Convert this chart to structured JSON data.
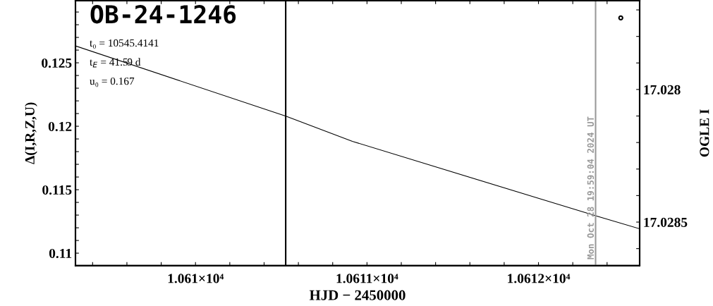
{
  "chart_data": {
    "type": "line",
    "title": "OB-24-1246",
    "xlabel": "HJD − 2450000",
    "ylabel": "Δ(I,R,Z,U)",
    "y2label": "OGLE I",
    "annotations": [
      "t₀ = 10545.4141",
      "t$_{E}$ = 41.59 d",
      "u₀ = 0.167",
      {
        "text": "Mon Oct 28 19:59:04 2024 UT",
        "x": 10612.333,
        "y": 0.1095
      }
    ],
    "series": [
      {
        "color": "#000000",
        "x": [
          10609.3,
          10610.527,
          10610.915,
          10612.0,
          10612.347,
          10612.59
        ],
        "values": [
          0.12633,
          0.12079,
          0.11881,
          0.11432,
          0.11289,
          0.11192
        ]
      },
      {
        "type": "scatter",
        "axis": "y2",
        "color": "#000000",
        "marker": "circle",
        "x": [
          10612.48
        ],
        "values": [
          17.02773
        ]
      }
    ],
    "xlim": [
      10609.3,
      10612.59
    ],
    "ylim": [
      0.10902,
      0.1299
    ],
    "y2lim": [
      17.028664,
      17.027665
    ],
    "xticks": [
      {
        "value": 10609.4,
        "label": null
      },
      {
        "value": 10609.6,
        "label": null
      },
      {
        "value": 10609.8,
        "label": null
      },
      {
        "value": 10610,
        "label": "1.061×10⁴"
      },
      {
        "value": 10610.2,
        "label": null
      },
      {
        "value": 10610.4,
        "label": null
      },
      {
        "value": 10610.6,
        "label": null
      },
      {
        "value": 10610.8,
        "label": null
      },
      {
        "value": 10611,
        "label": "1.0611×10⁴"
      },
      {
        "value": 10611.2,
        "label": null
      },
      {
        "value": 10611.4,
        "label": null
      },
      {
        "value": 10611.6,
        "label": null
      },
      {
        "value": 10611.8,
        "label": null
      },
      {
        "value": 10612,
        "label": "1.0612×10⁴"
      },
      {
        "value": 10612.2,
        "label": null
      },
      {
        "value": 10612.4,
        "label": null
      }
    ],
    "yticks": [
      0.11,
      {
        "value": 0.111,
        "label": null
      },
      {
        "value": 0.112,
        "label": null
      },
      {
        "value": 0.113,
        "label": null
      },
      {
        "value": 0.114,
        "label": null
      },
      0.115,
      {
        "value": 0.116,
        "label": null
      },
      {
        "value": 0.117,
        "label": null
      },
      {
        "value": 0.118,
        "label": null
      },
      {
        "value": 0.119,
        "label": null
      },
      0.12,
      {
        "value": 0.121,
        "label": null
      },
      {
        "value": 0.122,
        "label": null
      },
      {
        "value": 0.123,
        "label": null
      },
      {
        "value": 0.124,
        "label": null
      },
      0.125,
      {
        "value": 0.126,
        "label": null
      },
      {
        "value": 0.127,
        "label": null
      },
      {
        "value": 0.128,
        "label": null
      },
      {
        "value": 0.129,
        "label": null
      }
    ],
    "y2ticks": [
      {
        "value": 17.0277,
        "label": null
      },
      {
        "value": 17.0278,
        "label": null
      },
      {
        "value": 17.0279,
        "label": null
      },
      17.028,
      {
        "value": 17.0281,
        "label": null
      },
      {
        "value": 17.0282,
        "label": null
      },
      {
        "value": 17.0283,
        "label": null
      },
      {
        "value": 17.0284,
        "label": null
      },
      17.0285,
      {
        "value": 17.0286,
        "label": null
      }
    ],
    "ref_lines": [
      {
        "axis": "x",
        "value": 10610.526,
        "color": "#000000"
      },
      {
        "axis": "x",
        "value": 10612.333,
        "color": "#999999"
      }
    ],
    "grid": false,
    "legend": false
  }
}
